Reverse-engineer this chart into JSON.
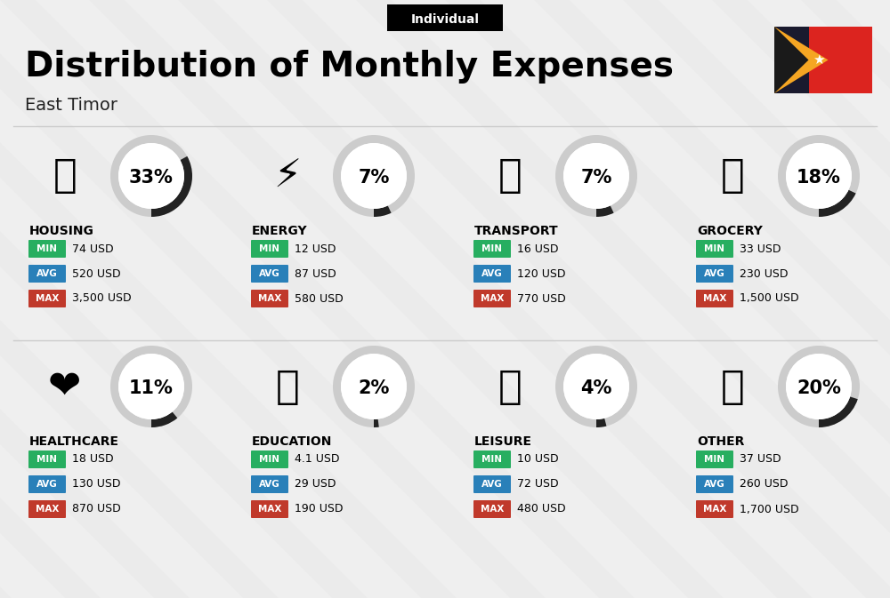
{
  "title": "Distribution of Monthly Expenses",
  "subtitle": "East Timor",
  "tag": "Individual",
  "bg_color": "#efefef",
  "categories": [
    {
      "name": "HOUSING",
      "pct": 33,
      "min": "74 USD",
      "avg": "520 USD",
      "max": "3,500 USD",
      "row": 0,
      "col": 0
    },
    {
      "name": "ENERGY",
      "pct": 7,
      "min": "12 USD",
      "avg": "87 USD",
      "max": "580 USD",
      "row": 0,
      "col": 1
    },
    {
      "name": "TRANSPORT",
      "pct": 7,
      "min": "16 USD",
      "avg": "120 USD",
      "max": "770 USD",
      "row": 0,
      "col": 2
    },
    {
      "name": "GROCERY",
      "pct": 18,
      "min": "33 USD",
      "avg": "230 USD",
      "max": "1,500 USD",
      "row": 0,
      "col": 3
    },
    {
      "name": "HEALTHCARE",
      "pct": 11,
      "min": "18 USD",
      "avg": "130 USD",
      "max": "870 USD",
      "row": 1,
      "col": 0
    },
    {
      "name": "EDUCATION",
      "pct": 2,
      "min": "4.1 USD",
      "avg": "29 USD",
      "max": "190 USD",
      "row": 1,
      "col": 1
    },
    {
      "name": "LEISURE",
      "pct": 4,
      "min": "10 USD",
      "avg": "72 USD",
      "max": "480 USD",
      "row": 1,
      "col": 2
    },
    {
      "name": "OTHER",
      "pct": 20,
      "min": "37 USD",
      "avg": "260 USD",
      "max": "1,700 USD",
      "row": 1,
      "col": 3
    }
  ],
  "icons": [
    "🏢",
    "⚡",
    "🚌",
    "🛒",
    "❤️",
    "🎓",
    "🛍️",
    "💰"
  ],
  "min_color": "#27ae60",
  "avg_color": "#2980b9",
  "max_color": "#c0392b",
  "arc_fill_color": "#222222",
  "arc_bg_color": "#cccccc",
  "label_color": "#111111",
  "title_fontsize": 28,
  "subtitle_fontsize": 14,
  "pct_fontsize": 15,
  "name_fontsize": 10,
  "val_fontsize": 9,
  "badge_fontsize": 7.5
}
